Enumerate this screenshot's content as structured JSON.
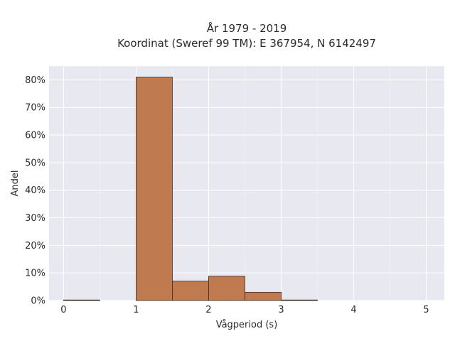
{
  "chart_data": {
    "type": "histogram",
    "title_line1": "År 1979 - 2019",
    "title_line2": "Koordinat (Sweref 99 TM): E 367954, N 6142497",
    "xlabel": "Vågperiod (s)",
    "ylabel": "Andel",
    "xlim": [
      -0.2,
      5.25
    ],
    "ylim": [
      0,
      0.85
    ],
    "x_ticks": [
      0,
      1,
      2,
      3,
      4,
      5
    ],
    "x_tick_labels": [
      "0",
      "1",
      "2",
      "3",
      "4",
      "5"
    ],
    "y_ticks": [
      0,
      0.1,
      0.2,
      0.3,
      0.4,
      0.5,
      0.6,
      0.7,
      0.8
    ],
    "y_tick_labels": [
      "0%",
      "10%",
      "20%",
      "30%",
      "40%",
      "50%",
      "60%",
      "70%",
      "80%"
    ],
    "bins": [
      {
        "x0": 0.0,
        "x1": 0.5,
        "value": 0.002
      },
      {
        "x0": 0.5,
        "x1": 1.0,
        "value": 0.0
      },
      {
        "x0": 1.0,
        "x1": 1.5,
        "value": 0.81
      },
      {
        "x0": 1.5,
        "x1": 2.0,
        "value": 0.07
      },
      {
        "x0": 2.0,
        "x1": 2.5,
        "value": 0.088
      },
      {
        "x0": 2.5,
        "x1": 3.0,
        "value": 0.03
      },
      {
        "x0": 3.0,
        "x1": 3.5,
        "value": 0.002
      }
    ],
    "bar_color": "#c07a50",
    "grid": true
  }
}
